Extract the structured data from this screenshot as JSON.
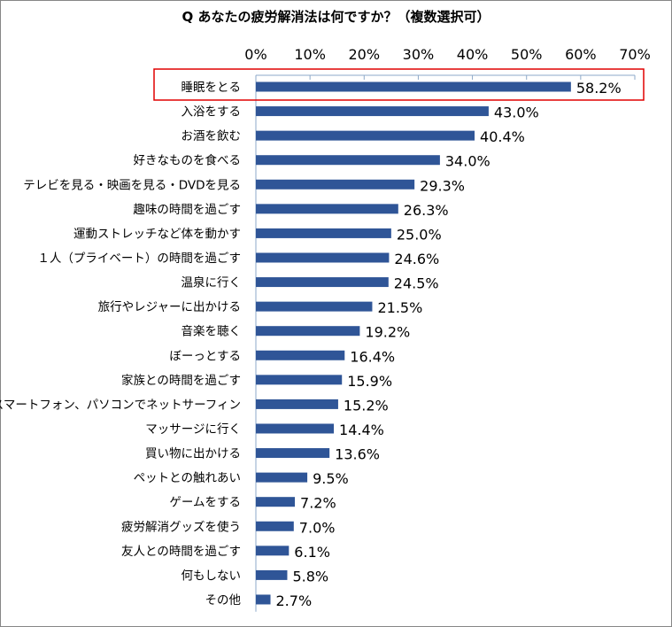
{
  "chart_data": {
    "type": "bar",
    "orientation": "horizontal",
    "title": "Q あなたの疲労解消法は何ですか？（複数選択可）",
    "categories": [
      "睡眠をとる",
      "入浴をする",
      "お酒を飲む",
      "好きなものを食べる",
      "テレビを見る・映画を見る・DVDを見る",
      "趣味の時間を過ごす",
      "運動ストレッチなど体を動かす",
      "１人（プライベート）の時間を過ごす",
      "温泉に行く",
      "旅行やレジャーに出かける",
      "音楽を聴く",
      "ぼーっとする",
      "家族との時間を過ごす",
      "スマートフォン、パソコンでネットサーフィン",
      "マッサージに行く",
      "買い物に出かける",
      "ペットとの触れあい",
      "ゲームをする",
      "疲労解消グッズを使う",
      "友人との時間を過ごす",
      "何もしない",
      "その他"
    ],
    "values": [
      58.2,
      43.0,
      40.4,
      34.0,
      29.3,
      26.3,
      25.0,
      24.6,
      24.5,
      21.5,
      19.2,
      16.4,
      15.9,
      15.2,
      14.4,
      13.6,
      9.5,
      7.2,
      7.0,
      6.1,
      5.8,
      2.7
    ],
    "data_labels": [
      "58.2%",
      "43.0%",
      "40.4%",
      "34.0%",
      "29.3%",
      "26.3%",
      "25.0%",
      "24.6%",
      "24.5%",
      "21.5%",
      "19.2%",
      "16.4%",
      "15.9%",
      "15.2%",
      "14.4%",
      "13.6%",
      "9.5%",
      "7.2%",
      "7.0%",
      "6.1%",
      "5.8%",
      "2.7%"
    ],
    "xlim": [
      0,
      70
    ],
    "x_ticks": [
      "0%",
      "10%",
      "20%",
      "30%",
      "40%",
      "50%",
      "60%",
      "70%"
    ],
    "x_axis_position": "top",
    "grid": false,
    "highlighted_category": "睡眠をとる",
    "bar_color": "#2F5597",
    "highlight_color": "#E00000"
  }
}
